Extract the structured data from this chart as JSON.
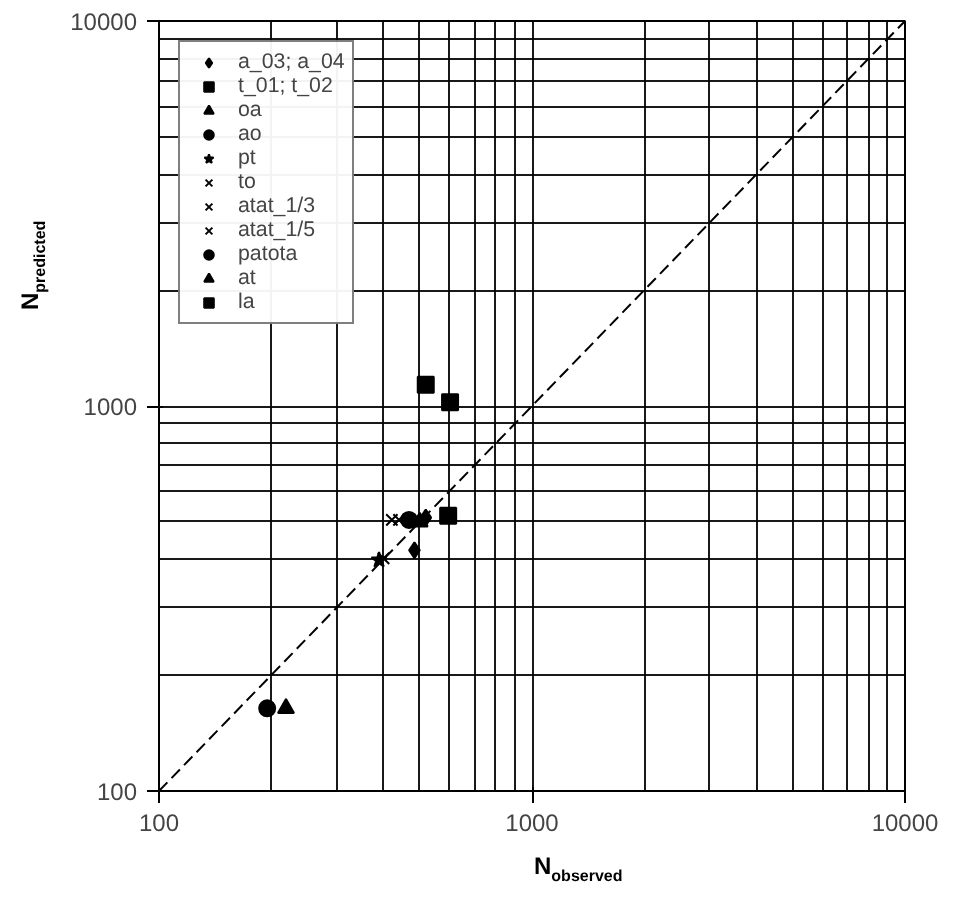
{
  "chart_data": {
    "type": "scatter",
    "xlabel": "N$_{observed}$",
    "ylabel": "N$_{predicted}$",
    "log": "xy",
    "grid": true,
    "legend": "top left",
    "xlim": [
      100,
      10000
    ],
    "ylim": [
      100,
      10000
    ],
    "xticks": [
      100,
      1000,
      10000
    ],
    "yticks": [
      100,
      1000,
      10000
    ],
    "series": [
      {
        "name": "a_03; a_04",
        "marker": "diamond",
        "color": "#000000",
        "x": [
          519,
          484
        ],
        "values": [
          513,
          422
        ]
      },
      {
        "name": "t_01; t_02",
        "marker": "square",
        "color": "#000000",
        "x": [
          519,
          603
        ],
        "values": [
          1135,
          1023
        ]
      },
      {
        "name": "oa",
        "marker": "triangle",
        "color": "#000000",
        "x": [
          219
        ],
        "values": [
          164
        ]
      },
      {
        "name": "ao",
        "marker": "circle",
        "color": "#000000",
        "x": [
          195
        ],
        "values": [
          164
        ]
      },
      {
        "name": "pt",
        "marker": "star",
        "color": "#000000",
        "x": [
          389
        ],
        "values": [
          398
        ]
      },
      {
        "name": "to",
        "marker": "cross",
        "color": "#000000",
        "x": [
          421
        ],
        "values": [
          506
        ]
      },
      {
        "name": "atat_1/3",
        "marker": "cross",
        "color": "#000000",
        "x": [
          440
        ],
        "values": [
          506
        ]
      },
      {
        "name": "atat_1/5",
        "marker": "cross",
        "color": "#000000",
        "x": [
          400
        ],
        "values": [
          402
        ]
      },
      {
        "name": "patota",
        "marker": "circle",
        "color": "#000000",
        "x": [
          468
        ],
        "values": [
          506
        ]
      },
      {
        "name": "at",
        "marker": "triangle",
        "color": "#000000",
        "x": [
          500
        ],
        "values": [
          500
        ]
      },
      {
        "name": "la",
        "marker": "square",
        "color": "#000000",
        "x": [
          596
        ],
        "values": [
          519
        ]
      },
      {
        "type": "line",
        "line_style": "dashed",
        "color": "#000000",
        "x": [
          100,
          10000
        ],
        "values": [
          100,
          10000
        ]
      }
    ]
  }
}
